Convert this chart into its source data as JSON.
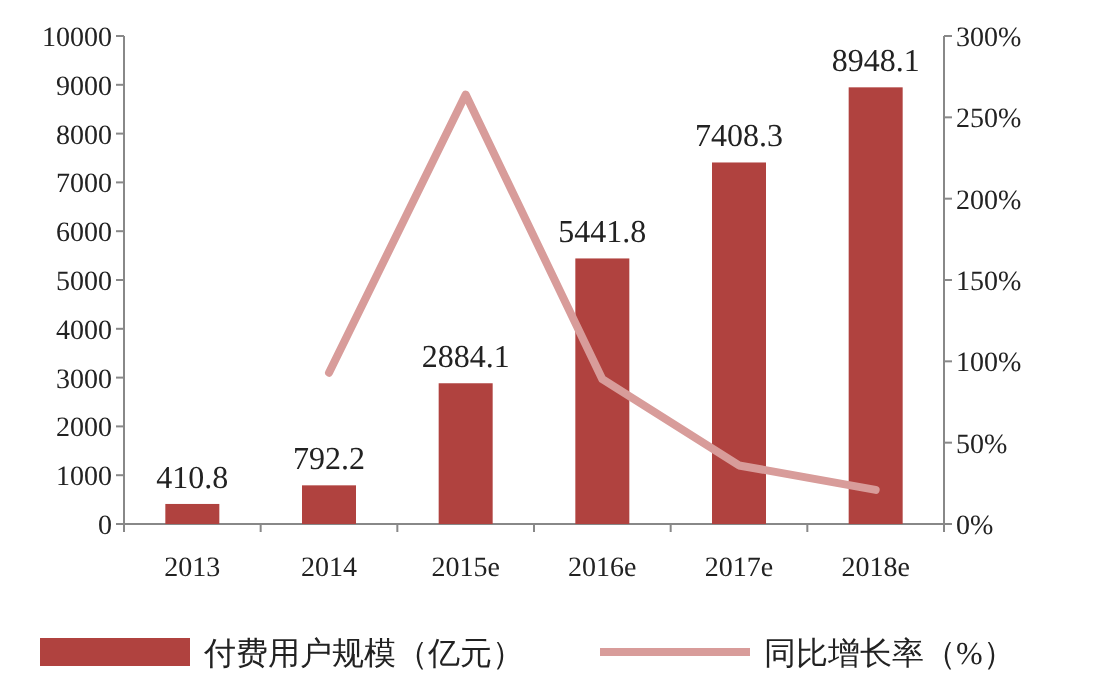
{
  "chart_data": {
    "type": "bar",
    "categories": [
      "2013",
      "2014",
      "2015e",
      "2016e",
      "2017e",
      "2018e"
    ],
    "series": [
      {
        "name": "付费用户规模（亿元）",
        "color": "#b0423f",
        "values": [
          410.8,
          792.2,
          2884.1,
          5441.8,
          7408.3,
          8948.1
        ],
        "value_labels": [
          "410.8",
          "792.2",
          "2884.1",
          "5441.8",
          "7408.3",
          "8948.1"
        ]
      },
      {
        "name": "同比增长率（%）",
        "type": "line",
        "axis": "y2",
        "color": "#d89c9a",
        "values": [
          null,
          93,
          264,
          89,
          36,
          21
        ]
      }
    ],
    "ylim": [
      0,
      10000
    ],
    "yticks": [
      0,
      1000,
      2000,
      3000,
      4000,
      5000,
      6000,
      7000,
      8000,
      9000,
      10000
    ],
    "y2lim": [
      0,
      300
    ],
    "y2ticks": [
      {
        "value": 0,
        "label": "0%"
      },
      {
        "value": 50,
        "label": "50%"
      },
      {
        "value": 100,
        "label": "100%"
      },
      {
        "value": 150,
        "label": "150%"
      },
      {
        "value": 200,
        "label": "200%"
      },
      {
        "value": 250,
        "label": "250%"
      },
      {
        "value": 300,
        "label": "300%"
      }
    ],
    "grid": false,
    "legend": "bottom",
    "marker": "none",
    "line_style": "solid"
  }
}
